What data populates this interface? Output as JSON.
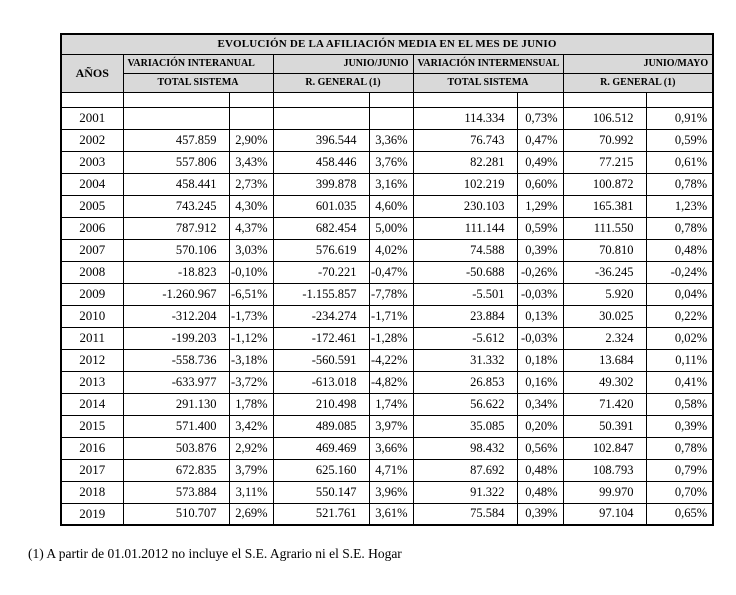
{
  "page": {
    "footnote": "(1) A partir de 01.01.2012 no incluye el S.E. Agrario ni el S.E. Hogar"
  },
  "colors": {
    "header_bg": "#d9d9d9",
    "border": "#000000"
  },
  "table": {
    "title": "EVOLUCIÓN DE LA AFILIACIÓN MEDIA EN EL MES DE JUNIO",
    "col_headers": {
      "years": "AÑOS",
      "interannual": "VARIACIÓN INTERANUAL",
      "june_june": "JUNIO/JUNIO",
      "intermonthly": "VARIACIÓN INTERMENSUAL",
      "june_may": "JUNIO/MAYO",
      "total_system_1": "TOTAL SISTEMA",
      "general_regime_1": "R. GENERAL (1)",
      "total_system_2": "TOTAL SISTEMA",
      "general_regime_2": "R. GENERAL (1)"
    },
    "rows": [
      {
        "year": "2001",
        "cells": [
          "",
          "",
          "",
          "",
          "114.334",
          "0,73%",
          "106.512",
          "0,91%"
        ]
      },
      {
        "year": "2002",
        "cells": [
          "457.859",
          "2,90%",
          "396.544",
          "3,36%",
          "76.743",
          "0,47%",
          "70.992",
          "0,59%"
        ]
      },
      {
        "year": "2003",
        "cells": [
          "557.806",
          "3,43%",
          "458.446",
          "3,76%",
          "82.281",
          "0,49%",
          "77.215",
          "0,61%"
        ]
      },
      {
        "year": "2004",
        "cells": [
          "458.441",
          "2,73%",
          "399.878",
          "3,16%",
          "102.219",
          "0,60%",
          "100.872",
          "0,78%"
        ]
      },
      {
        "year": "2005",
        "cells": [
          "743.245",
          "4,30%",
          "601.035",
          "4,60%",
          "230.103",
          "1,29%",
          "165.381",
          "1,23%"
        ]
      },
      {
        "year": "2006",
        "cells": [
          "787.912",
          "4,37%",
          "682.454",
          "5,00%",
          "111.144",
          "0,59%",
          "111.550",
          "0,78%"
        ]
      },
      {
        "year": "2007",
        "cells": [
          "570.106",
          "3,03%",
          "576.619",
          "4,02%",
          "74.588",
          "0,39%",
          "70.810",
          "0,48%"
        ]
      },
      {
        "year": "2008",
        "cells": [
          "-18.823",
          "-0,10%",
          "-70.221",
          "-0,47%",
          "-50.688",
          "-0,26%",
          "-36.245",
          "-0,24%"
        ]
      },
      {
        "year": "2009",
        "cells": [
          "-1.260.967",
          "-6,51%",
          "-1.155.857",
          "-7,78%",
          "-5.501",
          "-0,03%",
          "5.920",
          "0,04%"
        ]
      },
      {
        "year": "2010",
        "cells": [
          "-312.204",
          "-1,73%",
          "-234.274",
          "-1,71%",
          "23.884",
          "0,13%",
          "30.025",
          "0,22%"
        ]
      },
      {
        "year": "2011",
        "cells": [
          "-199.203",
          "-1,12%",
          "-172.461",
          "-1,28%",
          "-5.612",
          "-0,03%",
          "2.324",
          "0,02%"
        ]
      },
      {
        "year": "2012",
        "cells": [
          "-558.736",
          "-3,18%",
          "-560.591",
          "-4,22%",
          "31.332",
          "0,18%",
          "13.684",
          "0,11%"
        ]
      },
      {
        "year": "2013",
        "cells": [
          "-633.977",
          "-3,72%",
          "-613.018",
          "-4,82%",
          "26.853",
          "0,16%",
          "49.302",
          "0,41%"
        ]
      },
      {
        "year": "2014",
        "cells": [
          "291.130",
          "1,78%",
          "210.498",
          "1,74%",
          "56.622",
          "0,34%",
          "71.420",
          "0,58%"
        ]
      },
      {
        "year": "2015",
        "cells": [
          "571.400",
          "3,42%",
          "489.085",
          "3,97%",
          "35.085",
          "0,20%",
          "50.391",
          "0,39%"
        ]
      },
      {
        "year": "2016",
        "cells": [
          "503.876",
          "2,92%",
          "469.469",
          "3,66%",
          "98.432",
          "0,56%",
          "102.847",
          "0,78%"
        ]
      },
      {
        "year": "2017",
        "cells": [
          "672.835",
          "3,79%",
          "625.160",
          "4,71%",
          "87.692",
          "0,48%",
          "108.793",
          "0,79%"
        ]
      },
      {
        "year": "2018",
        "cells": [
          "573.884",
          "3,11%",
          "550.147",
          "3,96%",
          "91.322",
          "0,48%",
          "99.970",
          "0,70%"
        ]
      },
      {
        "year": "2019",
        "cells": [
          "510.707",
          "2,69%",
          "521.761",
          "3,61%",
          "75.584",
          "0,39%",
          "97.104",
          "0,65%"
        ]
      }
    ]
  }
}
